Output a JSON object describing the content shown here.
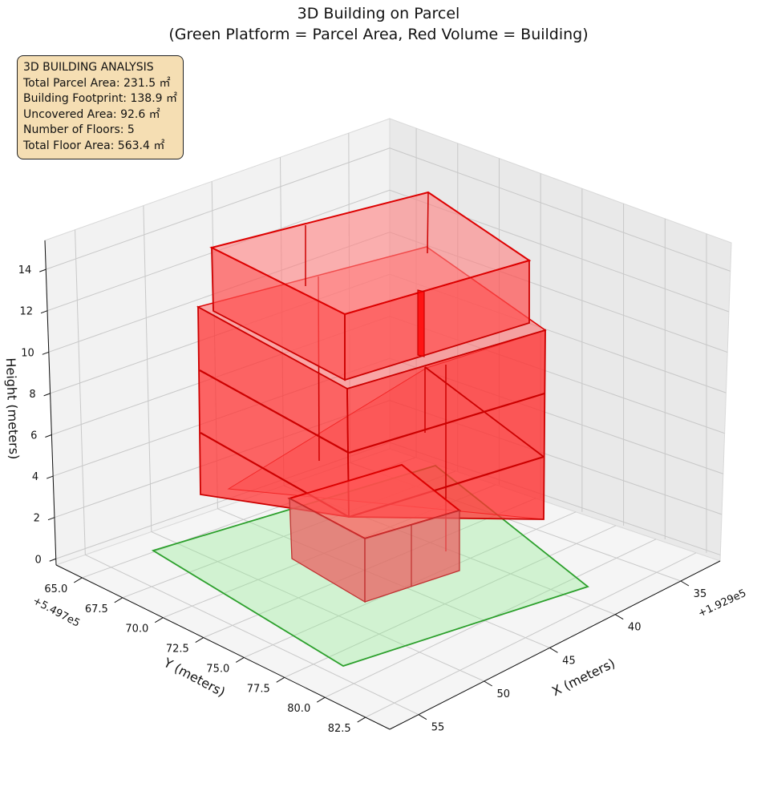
{
  "chart_data": {
    "type": "3d-volume",
    "title": "3D Building on Parcel",
    "subtitle": "(Green Platform = Parcel Area, Red Volume = Building)",
    "xlabel": "X (meters)",
    "ylabel": "Y (meters)",
    "zlabel": "Height (meters)",
    "x_offset_label": "+1.929e5",
    "y_offset_label": "+5.497e5",
    "x_ticks": [
      "35",
      "40",
      "45",
      "50",
      "55"
    ],
    "y_ticks": [
      "65.0",
      "67.5",
      "70.0",
      "72.5",
      "75.0",
      "77.5",
      "80.0",
      "82.5"
    ],
    "z_ticks": [
      "0",
      "2",
      "4",
      "6",
      "8",
      "10",
      "12",
      "14"
    ],
    "grid": true,
    "parcel_color": "#90ee90",
    "building_color": "#ff0000",
    "analysis": {
      "heading": "3D BUILDING ANALYSIS",
      "total_parcel_area": "Total Parcel Area: 231.5 ㎡",
      "building_footprint": "Building Footprint: 138.9 ㎡",
      "uncovered_area": "Uncovered Area: 92.6 ㎡",
      "number_of_floors": "Number of Floors: 5",
      "total_floor_area": "Total Floor Area: 563.4 ㎡"
    }
  }
}
